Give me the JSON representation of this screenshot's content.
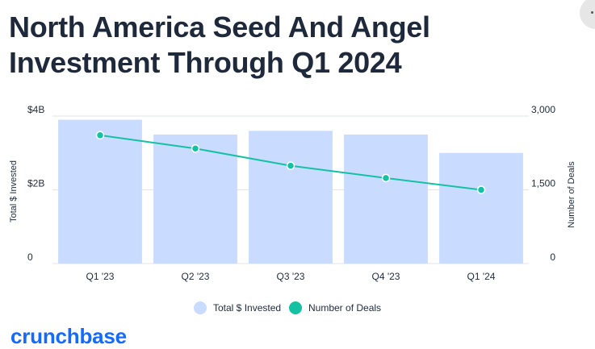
{
  "title": {
    "line1": "North America Seed And Angel",
    "line2": "Investment Through Q1 2024"
  },
  "logo_text": "crunchbase",
  "colors": {
    "bar": "#c9dcff",
    "line": "#14c2a3",
    "grid": "#e2e5ea",
    "logo": "#146aff"
  },
  "chart_data": {
    "type": "bar",
    "title": "North America Seed And Angel Investment Through Q1 2024",
    "categories": [
      "Q1 '23",
      "Q2 '23",
      "Q3 '23",
      "Q4 '23",
      "Q1 '24"
    ],
    "series": [
      {
        "name": "Total $ Invested",
        "type": "bar",
        "axis": "left",
        "unit": "$B",
        "values": [
          3.9,
          3.5,
          3.6,
          3.5,
          3.0
        ]
      },
      {
        "name": "Number of Deals",
        "type": "line",
        "axis": "right",
        "values": [
          2610,
          2340,
          1990,
          1740,
          1500
        ]
      }
    ],
    "ylabel": "Total $ Invested",
    "y2label": "Number of Deals",
    "ylim": [
      0,
      4
    ],
    "y2lim": [
      0,
      3000
    ],
    "y_ticks": [
      {
        "value": 0,
        "label": "0"
      },
      {
        "value": 2,
        "label": "$2B"
      },
      {
        "value": 4,
        "label": "$4B"
      }
    ],
    "y2_ticks": [
      {
        "value": 0,
        "label": "0"
      },
      {
        "value": 1500,
        "label": "1,500"
      },
      {
        "value": 3000,
        "label": "3,000"
      }
    ],
    "legend": [
      "Total $ Invested",
      "Number of Deals"
    ],
    "legend_position": "bottom-center",
    "grid": true
  }
}
